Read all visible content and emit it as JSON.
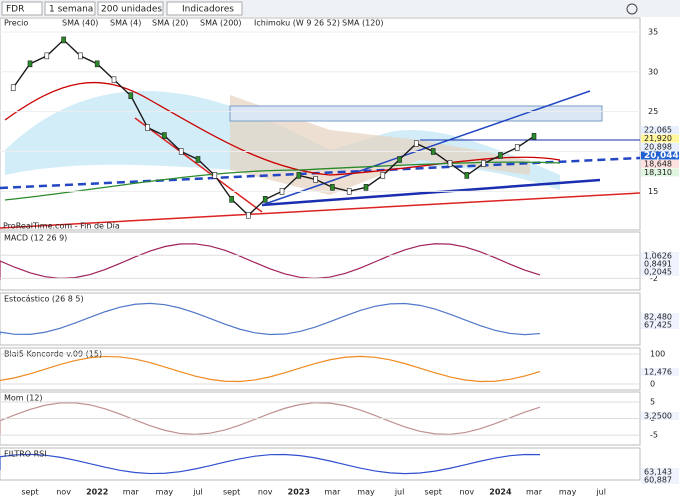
{
  "toolbar": {
    "symbol": "FDR",
    "period": "1 semana",
    "units": "200 unidades",
    "indicators": "Indicadores"
  },
  "legend": [
    "Precio",
    "SMA (40)",
    "SMA (4)",
    "SMA (20)",
    "SMA (200)",
    "Ichimoku (W 9 26 52)",
    "SMA (120)"
  ],
  "source": "ProRealTime.com - Fin de Día",
  "x_axis_labels": [
    "sept",
    "nov",
    "2022",
    "mar",
    "may",
    "jul",
    "sept",
    "nov",
    "2023",
    "mar",
    "may",
    "jul",
    "sept",
    "nov",
    "2024",
    "mar",
    "may",
    "jul"
  ],
  "chart_data": {
    "type": "line",
    "color": "#1a1a1a",
    "values": [
      28,
      31,
      32,
      34,
      32,
      31,
      29,
      27,
      23,
      22,
      20,
      19,
      17,
      14,
      12,
      14,
      15,
      17,
      16.5,
      15.5,
      15,
      15.5,
      17,
      19,
      21,
      20,
      18.5,
      17,
      18.5,
      19.5,
      20.5,
      21.9
    ],
    "ylim": [
      10.4,
      36.5
    ],
    "yticks": [
      15,
      20,
      25,
      30,
      35
    ],
    "price_labels": [
      "22,065",
      "21,920",
      "20,898",
      "20,044",
      "18,648",
      "18,310"
    ]
  },
  "panels": [
    {
      "title": "MACD (12 26 9)",
      "ylim": [
        -3,
        2
      ],
      "yticks": [
        0,
        -2
      ],
      "labels": [
        "1,0626",
        "0,8491",
        "0,2045"
      ]
    },
    {
      "title": "Estocástico (26 8 5)",
      "labels": [
        "82,480",
        "67,425"
      ]
    },
    {
      "title": "Blai5 Koncorde v.09 (15)",
      "ylim": [
        -20,
        120
      ],
      "yticks": [
        0,
        100
      ],
      "labels": [
        "12,476"
      ]
    },
    {
      "title": "Mom (12)",
      "ylim": [
        -8,
        8
      ],
      "yticks": [
        -5,
        0,
        5
      ],
      "labels": [
        "3,2500"
      ]
    },
    {
      "title": "FILTRO RSI",
      "labels": [
        "63,143",
        "60,887"
      ]
    }
  ]
}
